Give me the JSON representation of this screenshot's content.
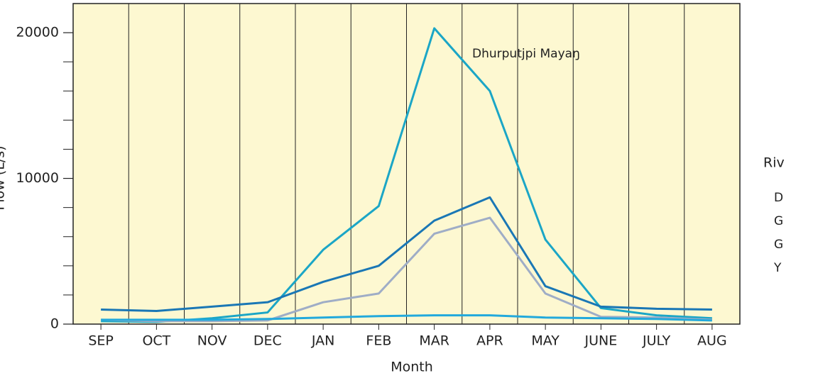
{
  "chart_data": {
    "type": "line",
    "x_label": "Month",
    "y_label": "Flow (L/s)",
    "annotation": "Dhurputjpi Mayaŋ",
    "legend_title": "Riv",
    "categories": [
      "SEP",
      "OCT",
      "NOV",
      "DEC",
      "JAN",
      "FEB",
      "MAR",
      "APR",
      "MAY",
      "JUNE",
      "JULY",
      "AUG"
    ],
    "series": [
      {
        "name": "D",
        "color": "#1ba6c6",
        "values": [
          200,
          150,
          400,
          800,
          5100,
          8100,
          20300,
          16000,
          5800,
          1100,
          600,
          400
        ]
      },
      {
        "name": "G",
        "color": "#1a77b5",
        "values": [
          1000,
          900,
          1200,
          1500,
          2900,
          4000,
          7100,
          8700,
          2600,
          1200,
          1050,
          1000
        ]
      },
      {
        "name": "G",
        "color": "#9fadc6",
        "values": [
          300,
          200,
          200,
          250,
          1500,
          2100,
          6200,
          7300,
          2100,
          500,
          450,
          300
        ]
      },
      {
        "name": "Y",
        "color": "#22a9dc",
        "values": [
          300,
          300,
          300,
          350,
          450,
          550,
          600,
          600,
          450,
          400,
          350,
          250
        ]
      }
    ],
    "ylim": [
      0,
      22000
    ],
    "yticks": [
      0,
      10000,
      20000
    ],
    "yminor": [
      2000,
      4000,
      6000,
      8000,
      12000,
      14000,
      16000,
      18000
    ]
  }
}
